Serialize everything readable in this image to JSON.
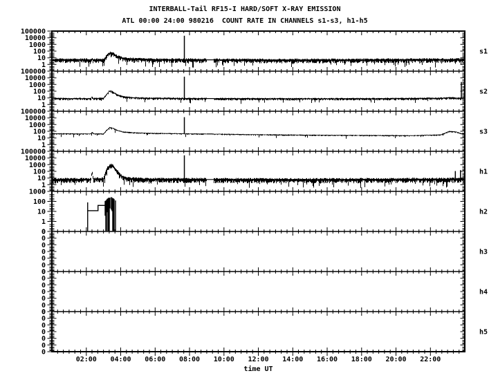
{
  "chart_data": {
    "type": "line",
    "title": "INTERBALL-Tail RF15-I HARD/SOFT X-RAY EMISSION",
    "subtitle": "ATL 00:00 24:00 980216  COUNT RATE IN CHANNELS s1-s3, h1-h5",
    "xlabel": "time UT",
    "x_range_hours": [
      0,
      24
    ],
    "x_tick_labels": [
      "02:00",
      "04:00",
      "06:00",
      "08:00",
      "10:00",
      "12:00",
      "14:00",
      "16:00",
      "18:00",
      "20:00",
      "22:00"
    ],
    "x_major_step_hours": 2,
    "x_minor_step_minutes": 20,
    "background": "#ffffff",
    "foreground": "#000000",
    "panels": [
      {
        "id": "s1",
        "label": "s1",
        "y_tick_labels": [
          "100000",
          "10000",
          "1000",
          "100",
          "10",
          "1",
          "0"
        ],
        "top_exponent": 5,
        "baseline_counts": [
          [
            0,
            5
          ],
          [
            2.27,
            5
          ],
          [
            2.33,
            7
          ],
          [
            2.4,
            5
          ],
          [
            3.0,
            5
          ],
          [
            3.1,
            9
          ],
          [
            3.25,
            35
          ],
          [
            3.42,
            55
          ],
          [
            3.6,
            40
          ],
          [
            3.8,
            16
          ],
          [
            4.1,
            9
          ],
          [
            4.5,
            7
          ],
          [
            5.5,
            5.5
          ],
          [
            9,
            5
          ],
          [
            14,
            4.6
          ],
          [
            20,
            5
          ],
          [
            24,
            5.5
          ]
        ],
        "noise": {
          "top_dex": 0.22,
          "bottom_dex": 0.5,
          "whisker_prob": 0.1,
          "whisker_dex": 0.7
        },
        "spikes": [
          {
            "t": 7.7,
            "peak": 20000
          }
        ],
        "quiet_intervals": [
          [
            9.0,
            9.4
          ]
        ]
      },
      {
        "id": "s2",
        "label": "s2",
        "y_tick_labels": [
          "100000",
          "10000",
          "1000",
          "100",
          "10",
          "1",
          "0"
        ],
        "top_exponent": 5,
        "baseline_counts": [
          [
            0,
            8
          ],
          [
            2.27,
            8
          ],
          [
            2.33,
            16
          ],
          [
            2.4,
            8
          ],
          [
            3.0,
            9
          ],
          [
            3.15,
            25
          ],
          [
            3.32,
            95
          ],
          [
            3.45,
            110
          ],
          [
            3.62,
            55
          ],
          [
            3.85,
            26
          ],
          [
            4.15,
            15
          ],
          [
            4.7,
            11
          ],
          [
            5.8,
            9
          ],
          [
            9,
            8
          ],
          [
            14,
            7.5
          ],
          [
            20,
            8
          ],
          [
            22.7,
            9
          ],
          [
            23.1,
            11
          ],
          [
            23.5,
            9.5
          ],
          [
            24,
            8.5
          ]
        ],
        "noise": {
          "top_dex": 0.12,
          "bottom_dex": 0.28,
          "whisker_prob": 0.05,
          "whisker_dex": 0.5
        },
        "spikes": [
          {
            "t": 7.7,
            "peak": 15000
          },
          {
            "t": 23.8,
            "peak": 2400
          }
        ],
        "quiet_intervals": [
          [
            9.0,
            9.4
          ]
        ]
      },
      {
        "id": "s3",
        "label": "s3",
        "y_tick_labels": [
          "100000",
          "10000",
          "1000",
          "100",
          "10",
          "1",
          "0"
        ],
        "top_exponent": 5,
        "baseline_counts": [
          [
            0,
            45
          ],
          [
            1.5,
            42
          ],
          [
            2.27,
            42
          ],
          [
            2.33,
            75
          ],
          [
            2.45,
            42
          ],
          [
            3.0,
            42
          ],
          [
            3.15,
            120
          ],
          [
            3.35,
            380
          ],
          [
            3.55,
            300
          ],
          [
            3.8,
            140
          ],
          [
            4.1,
            88
          ],
          [
            4.7,
            62
          ],
          [
            6,
            50
          ],
          [
            9,
            40
          ],
          [
            13,
            30
          ],
          [
            17,
            25
          ],
          [
            21,
            23
          ],
          [
            22.6,
            30
          ],
          [
            23.1,
            100
          ],
          [
            23.45,
            85
          ],
          [
            23.8,
            45
          ],
          [
            24,
            40
          ]
        ],
        "noise": {
          "top_dex": 0.07,
          "bottom_dex": 0.15,
          "whisker_prob": 0.04,
          "whisker_dex": 0.4
        },
        "spikes": [
          {
            "t": 7.7,
            "peak": 13000
          }
        ],
        "quiet_intervals": [
          [
            9.0,
            9.4
          ]
        ]
      },
      {
        "id": "h1",
        "label": "h1",
        "y_tick_labels": [
          "100000",
          "10000",
          "1000",
          "100",
          "10",
          "1",
          "0"
        ],
        "top_exponent": 5,
        "baseline_counts": [
          [
            0,
            6
          ],
          [
            2.27,
            6
          ],
          [
            2.33,
            90
          ],
          [
            2.42,
            7
          ],
          [
            3.0,
            7
          ],
          [
            3.1,
            40
          ],
          [
            3.22,
            300
          ],
          [
            3.4,
            900
          ],
          [
            3.55,
            700
          ],
          [
            3.7,
            220
          ],
          [
            3.9,
            55
          ],
          [
            4.1,
            15
          ],
          [
            4.5,
            8
          ],
          [
            5.5,
            6.5
          ],
          [
            9,
            6
          ],
          [
            14,
            5.6
          ],
          [
            20,
            6
          ],
          [
            22,
            6.5
          ],
          [
            24,
            6.5
          ]
        ],
        "noise": {
          "top_dex": 0.25,
          "bottom_dex": 0.55,
          "whisker_prob": 0.1,
          "whisker_dex": 0.7
        },
        "spikes": [
          {
            "t": 7.7,
            "peak": 25000
          },
          {
            "t": 23.45,
            "peak": 110
          },
          {
            "t": 23.75,
            "peak": 150
          }
        ],
        "quiet_intervals": [
          [
            9.0,
            9.4
          ]
        ]
      },
      {
        "id": "h2",
        "label": "h2",
        "y_tick_labels": [
          "1000",
          "100",
          "10",
          "1",
          "0"
        ],
        "top_exponent": 3,
        "steps": [
          [
            2.08,
            12
          ],
          [
            2.68,
            12
          ],
          [
            2.68,
            40
          ],
          [
            3.08,
            40
          ]
        ],
        "entry_spike": {
          "t": 2.08,
          "peak": 80
        },
        "burst": {
          "t_start": 3.08,
          "t_end": 3.72,
          "top_min": 100,
          "top_max": 260
        }
      },
      {
        "id": "h3",
        "label": "h3",
        "y_tick_labels": [
          "0",
          "0",
          "0",
          "0",
          "0",
          "0",
          "0"
        ],
        "top_exponent": null,
        "empty": true
      },
      {
        "id": "h4",
        "label": "h4",
        "y_tick_labels": [
          "0",
          "0",
          "0",
          "0",
          "0",
          "0",
          "0"
        ],
        "top_exponent": null,
        "empty": true
      },
      {
        "id": "h5",
        "label": "h5",
        "y_tick_labels": [
          "0",
          "0",
          "0",
          "0",
          "0",
          "0",
          "0"
        ],
        "top_exponent": null,
        "empty": true
      }
    ]
  }
}
